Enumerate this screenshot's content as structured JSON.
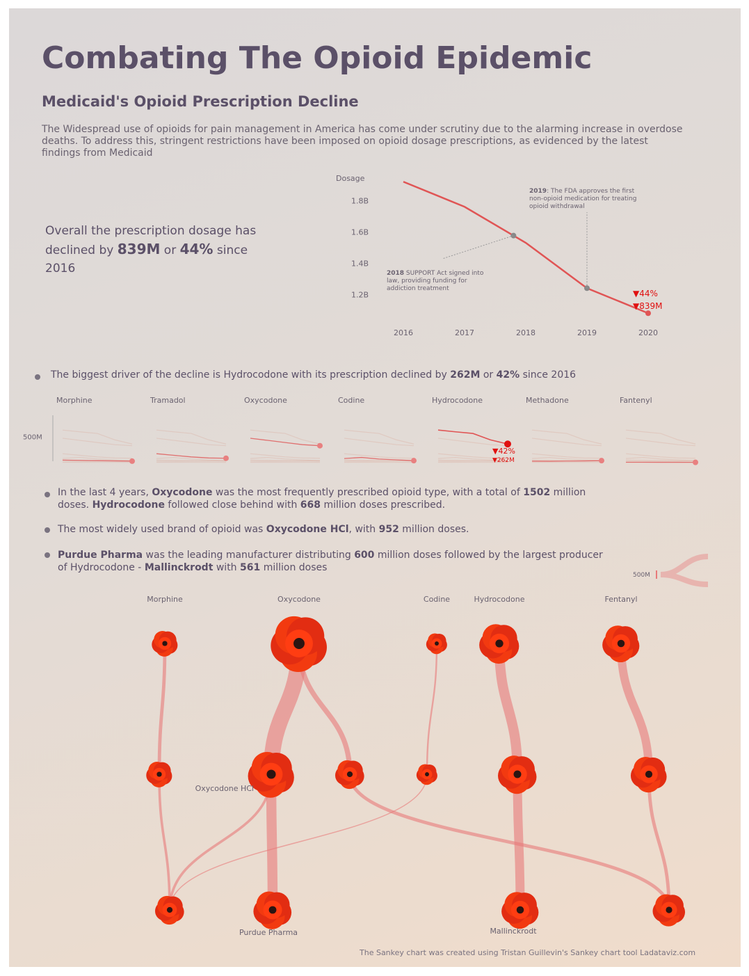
{
  "header": {
    "title": "Combating The Opioid Epidemic",
    "subtitle": "Medicaid's Opioid Prescription Decline",
    "intro": "The Widespread use of opioids for pain management in America has come under scrutiny due to the alarming increase in overdose deaths. To address this, stringent restrictions have been imposed on opioid dosage prescriptions, as evidenced by the latest findings from Medicaid"
  },
  "summary": [
    {
      "text": "Overall the prescription dosage has declined by "
    },
    {
      "text": "839M",
      "bold": true
    },
    {
      "text": " or "
    },
    {
      "text": "44%",
      "bold": true
    },
    {
      "text": " since 2016"
    }
  ],
  "bullets": [
    [
      {
        "text": "The biggest driver of the decline is Hydrocodone with its prescription declined by "
      },
      {
        "text": "262M",
        "bold": true
      },
      {
        "text": " or "
      },
      {
        "text": "42%",
        "bold": true
      },
      {
        "text": " since 2016"
      }
    ],
    [
      {
        "text": "In the last 4 years, "
      },
      {
        "text": "Oxycodone",
        "bold": true
      },
      {
        "text": " was the most frequently prescribed opioid type, with a total of "
      },
      {
        "text": "1502",
        "bold": true
      },
      {
        "text": " million doses. "
      },
      {
        "text": "Hydrocodone",
        "bold": true
      },
      {
        "text": " followed close behind with "
      },
      {
        "text": "668",
        "bold": true
      },
      {
        "text": " million doses prescribed."
      }
    ],
    [
      {
        "text": "The most widely used brand of opioid was "
      },
      {
        "text": "Oxycodone HCl",
        "bold": true
      },
      {
        "text": ", with "
      },
      {
        "text": "952",
        "bold": true
      },
      {
        "text": " million doses."
      }
    ],
    [
      {
        "text": "Purdue Pharma",
        "bold": true
      },
      {
        "text": " was the leading manufacturer distributing "
      },
      {
        "text": "600",
        "bold": true
      },
      {
        "text": " million doses followed by the largest producer of Hydrocodone - "
      },
      {
        "text": "Mallinckrodt",
        "bold": true
      },
      {
        "text": " with "
      },
      {
        "text": "561",
        "bold": true
      },
      {
        "text": " million doses"
      }
    ]
  ],
  "footer": "The Sankey chart was created using Tristan Guillevin's Sankey chart tool  Ladataviz.com",
  "chart_data": [
    {
      "type": "line",
      "ylabel": "Dosage",
      "x": [
        2016,
        2017,
        2018,
        2019,
        2020
      ],
      "values": [
        1.92,
        1.76,
        1.53,
        1.24,
        1.08
      ],
      "color": "#e05555",
      "xlim": [
        2016,
        2020
      ],
      "xticks": [
        2016,
        2017,
        2018,
        2019,
        2020
      ],
      "ylim": [
        1.05,
        1.97
      ],
      "yticks": [
        {
          "value": 1.2,
          "label": "1.2B"
        },
        {
          "value": 1.4,
          "label": "1.4B"
        },
        {
          "value": 1.6,
          "label": "1.6B"
        },
        {
          "value": 1.8,
          "label": "1.8B"
        }
      ],
      "annotations": [
        {
          "x": 2017.8,
          "year": "2018",
          "text": " SUPPORT Act signed into law, providing funding for addiction treatment"
        },
        {
          "x": 2019,
          "year": "2019",
          "text": ": The FDA approves the first non-opioid medication for treating opioid withdrawal"
        }
      ],
      "end_labels": [
        "▼44%",
        "▼839M"
      ]
    },
    {
      "type": "multiples",
      "ylim": [
        0,
        900
      ],
      "yticks": [
        {
          "value": 500,
          "label": "500M"
        }
      ],
      "color": "#e05555",
      "highlight": "Hydrocodone",
      "series": [
        {
          "name": "Morphine",
          "values": [
            60,
            55,
            50,
            45,
            40
          ]
        },
        {
          "name": "Tramadol",
          "values": [
            180,
            150,
            120,
            100,
            95
          ]
        },
        {
          "name": "Oxycodone",
          "values": [
            470,
            430,
            390,
            350,
            330
          ]
        },
        {
          "name": "Codine",
          "values": [
            90,
            110,
            80,
            65,
            50
          ]
        },
        {
          "name": "Hydrocodone",
          "values": [
            624,
            590,
            560,
            440,
            362
          ]
        },
        {
          "name": "Methadone",
          "values": [
            40,
            38,
            42,
            45,
            50
          ]
        },
        {
          "name": "Fantenyl",
          "values": [
            20,
            20,
            19,
            19,
            18
          ]
        }
      ],
      "end_labels": [
        "▼42%",
        "▼262M"
      ]
    },
    {
      "type": "sankey",
      "color": "#e87a7a",
      "legend": {
        "value": 500,
        "label": "500M"
      },
      "nodes": [
        {
          "label": "Morphine",
          "value": 220,
          "level": 0
        },
        {
          "label": "Oxycodone",
          "value": 1502,
          "level": 0
        },
        {
          "label": "Codine",
          "value": 120,
          "level": 0
        },
        {
          "label": "Hydrocodone",
          "value": 668,
          "level": 0
        },
        {
          "label": "Fentanyl",
          "value": 560,
          "level": 0
        },
        {
          "label": null,
          "value": 220,
          "level": 1
        },
        {
          "label": "Oxycodone HCl",
          "value": 952,
          "level": 1
        },
        {
          "label": null,
          "value": 300,
          "level": 1
        },
        {
          "label": null,
          "value": 120,
          "level": 1
        },
        {
          "label": null,
          "value": 620,
          "level": 1
        },
        {
          "label": null,
          "value": 520,
          "level": 1
        },
        {
          "label": "Purdue Pharma",
          "value": 600,
          "level": 2
        },
        {
          "label": null,
          "value": 300,
          "level": 2
        },
        {
          "label": "Mallinckrodt",
          "value": 561,
          "level": 2
        },
        {
          "label": null,
          "value": 400,
          "level": 2
        }
      ],
      "links": [
        {
          "source": 0,
          "target": 5,
          "value": 200
        },
        {
          "source": 1,
          "target": 6,
          "value": 952
        },
        {
          "source": 1,
          "target": 7,
          "value": 300
        },
        {
          "source": 2,
          "target": 8,
          "value": 100
        },
        {
          "source": 3,
          "target": 9,
          "value": 600
        },
        {
          "source": 4,
          "target": 10,
          "value": 500
        },
        {
          "source": 5,
          "target": 12,
          "value": 150
        },
        {
          "source": 6,
          "target": 11,
          "value": 600
        },
        {
          "source": 6,
          "target": 12,
          "value": 150
        },
        {
          "source": 7,
          "target": 14,
          "value": 200
        },
        {
          "source": 9,
          "target": 13,
          "value": 540
        },
        {
          "source": 10,
          "target": 14,
          "value": 200
        },
        {
          "source": 8,
          "target": 12,
          "value": 60
        }
      ]
    }
  ]
}
